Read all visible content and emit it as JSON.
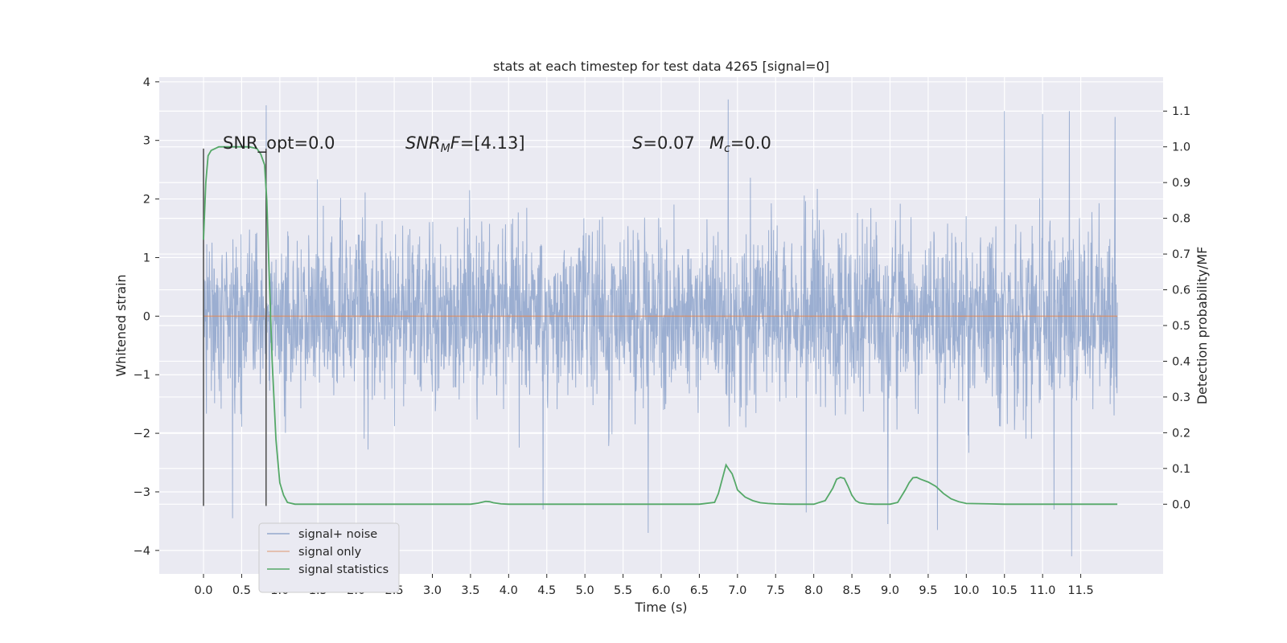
{
  "chart_data": {
    "type": "line",
    "title": "stats at each timestep for test data 4265 [signal=0]",
    "xlabel": "Time (s)",
    "ylabel": "Whitened strain",
    "ylabel_right": "Detection probability/MF",
    "xlim": [
      -0.58,
      12.58
    ],
    "ylim": [
      -4.4,
      4.08
    ],
    "ylim_right": [
      -0.195,
      1.195
    ],
    "x_ticks": [
      "0.0",
      "0.5",
      "1.0",
      "1.5",
      "2.0",
      "2.5",
      "3.0",
      "3.5",
      "4.0",
      "4.5",
      "5.0",
      "5.5",
      "6.0",
      "6.5",
      "7.0",
      "7.5",
      "8.0",
      "8.5",
      "9.0",
      "9.5",
      "10.0",
      "10.5",
      "11.0",
      "11.5"
    ],
    "y_ticks": [
      "4",
      "3",
      "2",
      "1",
      "0",
      "−1",
      "−2",
      "−3",
      "−4"
    ],
    "y_ticks_right": [
      "1.1",
      "1.0",
      "0.9",
      "0.8",
      "0.7",
      "0.6",
      "0.5",
      "0.4",
      "0.3",
      "0.2",
      "0.1",
      "0.0"
    ],
    "vlines": [
      0.0,
      0.82
    ],
    "grid": true,
    "legend_position": "lower-left",
    "annotations": [
      {
        "text": "SNR_opt=0.0"
      },
      {
        "text": "SNR_MF=[4.13]"
      },
      {
        "text": "S=0.07"
      },
      {
        "text": "M_c=0.0"
      }
    ],
    "series": [
      {
        "name": "signal+ noise",
        "color": "#4c72b0",
        "axis": "left",
        "description": "Gaussian-like whitened noise spanning 0–12 s, bulk within about ±1.8, peaks to about ±3.7",
        "peaks": [
          [
            0.82,
            3.6
          ],
          [
            0.38,
            -3.45
          ],
          [
            4.45,
            -3.3
          ],
          [
            5.83,
            -3.7
          ],
          [
            6.88,
            3.7
          ],
          [
            7.9,
            -3.35
          ],
          [
            8.97,
            -3.55
          ],
          [
            9.62,
            -3.65
          ],
          [
            10.5,
            3.5
          ],
          [
            11.0,
            3.45
          ],
          [
            11.15,
            -3.3
          ],
          [
            11.38,
            -4.1
          ],
          [
            11.35,
            3.5
          ],
          [
            11.95,
            3.4
          ]
        ]
      },
      {
        "name": "signal only",
        "color": "#dd8452",
        "axis": "left",
        "x": [
          0.0,
          11.98
        ],
        "y": [
          0.0,
          0.0
        ]
      },
      {
        "name": "signal statistics",
        "color": "#55a868",
        "axis": "right",
        "x": [
          0.0,
          0.03,
          0.06,
          0.1,
          0.15,
          0.2,
          0.3,
          0.4,
          0.5,
          0.6,
          0.7,
          0.75,
          0.8,
          0.83,
          0.86,
          0.9,
          0.95,
          1.0,
          1.05,
          1.1,
          1.2,
          1.5,
          2.0,
          2.5,
          3.0,
          3.5,
          3.6,
          3.7,
          3.75,
          3.8,
          3.9,
          4.0,
          5.0,
          6.0,
          6.5,
          6.7,
          6.75,
          6.8,
          6.85,
          6.88,
          6.93,
          6.97,
          7.0,
          7.05,
          7.1,
          7.2,
          7.3,
          7.4,
          7.5,
          7.7,
          8.0,
          8.15,
          8.25,
          8.3,
          8.35,
          8.4,
          8.45,
          8.5,
          8.55,
          8.6,
          8.7,
          8.8,
          9.0,
          9.1,
          9.2,
          9.25,
          9.3,
          9.35,
          9.4,
          9.5,
          9.6,
          9.7,
          9.8,
          9.9,
          10.0,
          10.3,
          10.5,
          11.0,
          11.5,
          11.98
        ],
        "y": [
          0.74,
          0.9,
          0.975,
          0.99,
          0.995,
          1.0,
          1.0,
          1.0,
          1.0,
          1.0,
          0.995,
          0.98,
          0.95,
          0.85,
          0.65,
          0.4,
          0.18,
          0.06,
          0.025,
          0.005,
          0.0,
          0.0,
          0.0,
          0.0,
          0.0,
          0.0,
          0.003,
          0.008,
          0.007,
          0.004,
          0.001,
          0.0,
          0.0,
          0.0,
          0.0,
          0.005,
          0.03,
          0.07,
          0.11,
          0.1,
          0.085,
          0.06,
          0.04,
          0.03,
          0.02,
          0.01,
          0.004,
          0.002,
          0.001,
          0.0,
          0.0,
          0.01,
          0.045,
          0.07,
          0.075,
          0.072,
          0.05,
          0.025,
          0.01,
          0.004,
          0.001,
          0.0,
          0.0,
          0.005,
          0.04,
          0.06,
          0.074,
          0.075,
          0.07,
          0.062,
          0.05,
          0.03,
          0.015,
          0.007,
          0.002,
          0.001,
          0.0,
          0.0,
          0.0,
          0.0
        ]
      }
    ]
  }
}
